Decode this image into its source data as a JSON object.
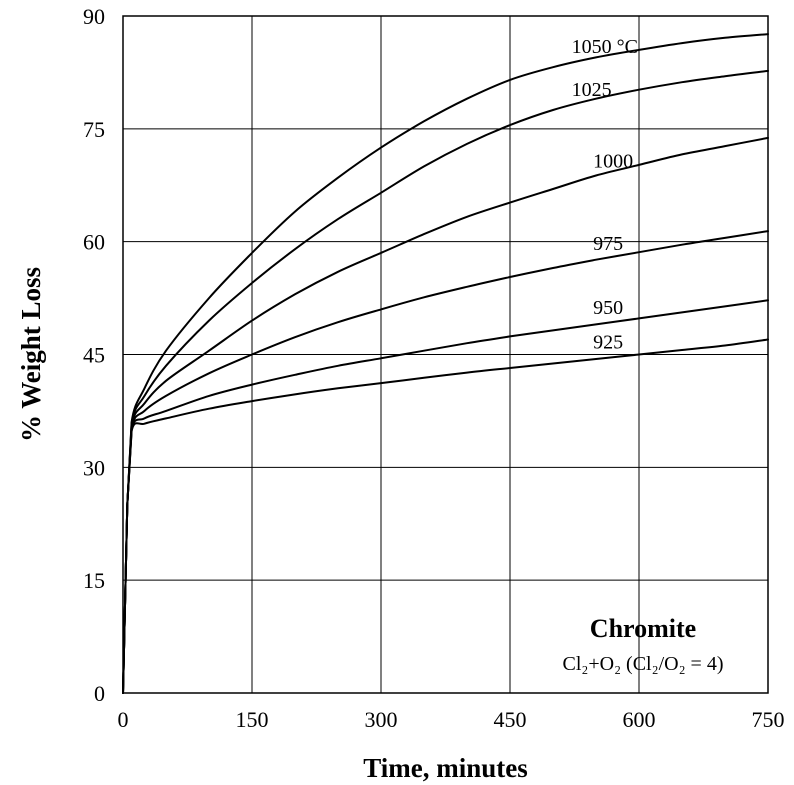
{
  "chart_data": {
    "type": "line",
    "title": "",
    "xlabel": "Time, minutes",
    "ylabel": "% Weight Loss",
    "xlim": [
      0,
      750
    ],
    "ylim": [
      0,
      90
    ],
    "xticks": [
      0,
      150,
      300,
      450,
      600,
      750
    ],
    "yticks": [
      0,
      15,
      30,
      45,
      60,
      75,
      90
    ],
    "grid": true,
    "x": [
      0,
      5,
      10,
      25,
      50,
      100,
      150,
      200,
      250,
      300,
      350,
      400,
      450,
      500,
      550,
      600,
      650,
      700,
      750
    ],
    "series": [
      {
        "name": "1050 °C",
        "values": [
          0,
          25,
          36,
          40.5,
          45.5,
          52.5,
          58.5,
          64,
          68.5,
          72.5,
          76,
          79,
          81.5,
          83.2,
          84.5,
          85.5,
          86.4,
          87.1,
          87.6
        ]
      },
      {
        "name": "1025",
        "values": [
          0,
          25,
          35.8,
          39.5,
          43.5,
          49.5,
          54.5,
          59,
          63,
          66.5,
          70,
          73,
          75.5,
          77.5,
          79,
          80.2,
          81.2,
          82,
          82.7
        ]
      },
      {
        "name": "1000",
        "values": [
          0,
          25,
          35.5,
          38.5,
          41.5,
          45.5,
          49.5,
          53,
          56,
          58.5,
          61,
          63.3,
          65.2,
          67,
          68.8,
          70.2,
          71.6,
          72.7,
          73.8
        ]
      },
      {
        "name": "975",
        "values": [
          0,
          25,
          35.2,
          37.5,
          39.5,
          42.5,
          45,
          47.3,
          49.3,
          51,
          52.6,
          54,
          55.3,
          56.5,
          57.6,
          58.6,
          59.6,
          60.5,
          61.4
        ]
      },
      {
        "name": "950",
        "values": [
          0,
          25,
          35,
          36.5,
          37.5,
          39.5,
          41,
          42.3,
          43.5,
          44.5,
          45.5,
          46.5,
          47.4,
          48.2,
          49,
          49.8,
          50.6,
          51.4,
          52.2
        ]
      },
      {
        "name": "925",
        "values": [
          0,
          25,
          34.8,
          35.8,
          36.5,
          37.8,
          38.8,
          39.7,
          40.5,
          41.2,
          41.9,
          42.6,
          43.2,
          43.8,
          44.4,
          45,
          45.6,
          46.2,
          47
        ]
      }
    ],
    "annotation": {
      "title": "Chromite",
      "subtitle": "Cl₂+O₂ (Cl₂/O₂ = 4)"
    }
  }
}
